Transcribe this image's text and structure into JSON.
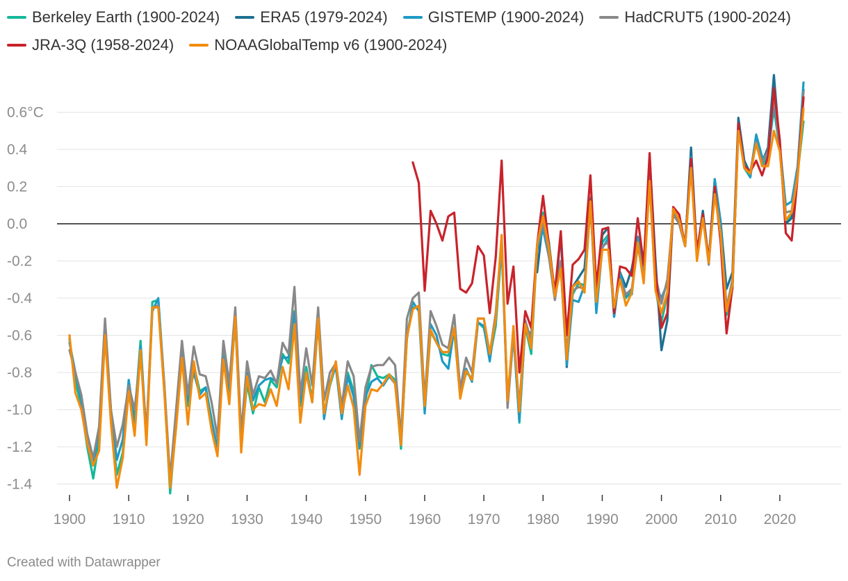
{
  "chart_data": {
    "type": "line",
    "title": "",
    "xlabel": "",
    "ylabel": "",
    "xlim": [
      1900,
      2024
    ],
    "ylim": [
      -1.5,
      0.8
    ],
    "y_ticks": [
      {
        "value": 0.6,
        "label": "0.6°C"
      },
      {
        "value": 0.4,
        "label": "0.4"
      },
      {
        "value": 0.2,
        "label": "0.2"
      },
      {
        "value": 0.0,
        "label": "0.0"
      },
      {
        "value": -0.2,
        "label": "-0.2"
      },
      {
        "value": -0.4,
        "label": "-0.4"
      },
      {
        "value": -0.6,
        "label": "-0.6"
      },
      {
        "value": -0.8,
        "label": "-0.8"
      },
      {
        "value": -1.0,
        "label": "-1.0"
      },
      {
        "value": -1.2,
        "label": "-1.2"
      },
      {
        "value": -1.4,
        "label": "-1.4"
      }
    ],
    "x_ticks": [
      {
        "value": 1900,
        "label": "1900"
      },
      {
        "value": 1910,
        "label": "1910"
      },
      {
        "value": 1920,
        "label": "1920"
      },
      {
        "value": 1930,
        "label": "1930"
      },
      {
        "value": 1940,
        "label": "1940"
      },
      {
        "value": 1950,
        "label": "1950"
      },
      {
        "value": 1960,
        "label": "1960"
      },
      {
        "value": 1970,
        "label": "1970"
      },
      {
        "value": 1980,
        "label": "1980"
      },
      {
        "value": 1990,
        "label": "1990"
      },
      {
        "value": 2000,
        "label": "2000"
      },
      {
        "value": 2010,
        "label": "2010"
      },
      {
        "value": 2020,
        "label": "2020"
      }
    ],
    "grid": true,
    "legend_position": "top",
    "baseline": 0,
    "series": [
      {
        "name": "Berkeley Earth (1900-2024)",
        "color": "#14b89a",
        "start_year": 1900,
        "values": [
          -0.62,
          -0.85,
          -0.98,
          -1.2,
          -1.37,
          -1.17,
          -0.58,
          -1.05,
          -1.35,
          -1.23,
          -0.86,
          -1.04,
          -0.63,
          -1.15,
          -0.42,
          -0.41,
          -0.88,
          -1.45,
          -1.08,
          -0.67,
          -0.98,
          -0.76,
          -0.9,
          -0.88,
          -1.05,
          -1.22,
          -0.67,
          -0.94,
          -0.51,
          -1.18,
          -0.86,
          -1.02,
          -0.88,
          -0.96,
          -0.84,
          -0.88,
          -0.7,
          -0.75,
          -0.47,
          -0.98,
          -0.77,
          -0.95,
          -0.5,
          -1.03,
          -0.87,
          -0.76,
          -1.04,
          -0.8,
          -0.9,
          -1.21,
          -0.95,
          -0.76,
          -0.82,
          -0.83,
          -0.81,
          -0.84,
          -1.21,
          -0.6,
          -0.45,
          -0.45,
          -1.0,
          -0.58,
          -0.64,
          -0.7,
          -0.71,
          -0.58,
          -0.93,
          -0.8,
          -0.83,
          -0.53,
          -0.56,
          -0.72,
          -0.55,
          -0.12,
          -0.97,
          -0.58,
          -1.07,
          -0.55,
          -0.7,
          -0.12,
          0.06,
          -0.1,
          -0.38,
          -0.22,
          -0.73,
          -0.38,
          -0.32,
          -0.33,
          0.14,
          -0.4,
          -0.1,
          -0.06,
          -0.46,
          -0.29,
          -0.4,
          -0.36,
          -0.12,
          -0.26,
          0.22,
          -0.35,
          -0.53,
          -0.38,
          0.07,
          0.01,
          -0.1,
          0.33,
          -0.18,
          0.05,
          -0.19,
          0.18,
          -0.04,
          -0.49,
          -0.33,
          0.52,
          0.3,
          0.25,
          0.46,
          0.31,
          0.38,
          0.62,
          0.4,
          0.0,
          0.05,
          0.27,
          0.55
        ]
      },
      {
        "name": "ERA5 (1979-2024)",
        "color": "#1d6f91",
        "start_year": 1979,
        "values": [
          -0.26,
          0.02,
          -0.13,
          -0.4,
          -0.05,
          -0.77,
          -0.34,
          -0.29,
          -0.24,
          0.13,
          -0.45,
          -0.06,
          -0.02,
          -0.5,
          -0.26,
          -0.34,
          -0.24,
          -0.07,
          -0.24,
          0.36,
          -0.2,
          -0.68,
          -0.52,
          0.08,
          0.0,
          -0.12,
          0.41,
          -0.16,
          0.07,
          -0.2,
          0.24,
          0.01,
          -0.35,
          -0.26,
          0.57,
          0.34,
          0.27,
          0.47,
          0.33,
          0.41,
          0.8,
          0.41,
          0.0,
          0.03,
          0.3,
          0.72
        ]
      },
      {
        "name": "GISTEMP (1900-2024)",
        "color": "#1c9bc5",
        "start_year": 1900,
        "values": [
          -0.64,
          -0.8,
          -0.95,
          -1.16,
          -1.3,
          -1.1,
          -0.55,
          -1.0,
          -1.27,
          -1.16,
          -0.84,
          -1.07,
          -0.66,
          -1.14,
          -0.47,
          -0.4,
          -0.86,
          -1.4,
          -1.05,
          -0.7,
          -0.95,
          -0.8,
          -0.92,
          -0.88,
          -1.07,
          -1.2,
          -0.72,
          -0.9,
          -0.52,
          -1.2,
          -0.8,
          -0.95,
          -0.87,
          -0.84,
          -0.83,
          -0.85,
          -0.72,
          -0.72,
          -0.48,
          -0.96,
          -0.8,
          -0.96,
          -0.52,
          -1.05,
          -0.85,
          -0.77,
          -1.05,
          -0.82,
          -0.93,
          -1.2,
          -0.93,
          -0.85,
          -0.83,
          -0.87,
          -0.82,
          -0.86,
          -1.17,
          -0.62,
          -0.42,
          -0.47,
          -1.02,
          -0.54,
          -0.6,
          -0.74,
          -0.78,
          -0.56,
          -0.9,
          -0.78,
          -0.85,
          -0.53,
          -0.55,
          -0.74,
          -0.5,
          -0.1,
          -0.95,
          -0.6,
          -1.06,
          -0.55,
          -0.6,
          -0.14,
          -0.03,
          -0.18,
          -0.36,
          -0.24,
          -0.76,
          -0.41,
          -0.42,
          -0.33,
          0.12,
          -0.48,
          -0.13,
          -0.08,
          -0.5,
          -0.26,
          -0.39,
          -0.38,
          -0.07,
          -0.22,
          0.27,
          -0.33,
          -0.4,
          -0.32,
          0.07,
          0.01,
          -0.1,
          0.36,
          -0.17,
          0.05,
          -0.2,
          0.24,
          0.0,
          -0.45,
          -0.35,
          0.53,
          0.32,
          0.25,
          0.48,
          0.36,
          0.36,
          0.65,
          0.42,
          0.1,
          0.12,
          0.31,
          0.76
        ]
      },
      {
        "name": "HadCRUT5 (1900-2024)",
        "color": "#888888",
        "start_year": 1900,
        "values": [
          -0.68,
          -0.8,
          -0.92,
          -1.13,
          -1.26,
          -1.09,
          -0.51,
          -1.0,
          -1.2,
          -1.08,
          -0.87,
          -1.0,
          -0.7,
          -1.12,
          -0.45,
          -0.44,
          -0.86,
          -1.37,
          -1.0,
          -0.63,
          -0.92,
          -0.66,
          -0.81,
          -0.82,
          -0.96,
          -1.15,
          -0.63,
          -0.86,
          -0.45,
          -1.13,
          -0.74,
          -0.92,
          -0.82,
          -0.83,
          -0.79,
          -0.86,
          -0.64,
          -0.7,
          -0.34,
          -0.92,
          -0.67,
          -0.87,
          -0.45,
          -0.95,
          -0.8,
          -0.75,
          -0.98,
          -0.74,
          -0.82,
          -1.17,
          -0.88,
          -0.77,
          -0.76,
          -0.76,
          -0.72,
          -0.76,
          -1.15,
          -0.51,
          -0.4,
          -0.37,
          -0.95,
          -0.47,
          -0.55,
          -0.65,
          -0.67,
          -0.49,
          -0.89,
          -0.72,
          -0.8,
          -0.51,
          -0.51,
          -0.7,
          -0.48,
          -0.08,
          -0.99,
          -0.6,
          -0.98,
          -0.52,
          -0.63,
          -0.12,
          0.01,
          -0.18,
          -0.41,
          -0.2,
          -0.7,
          -0.36,
          -0.34,
          -0.35,
          0.1,
          -0.42,
          -0.12,
          -0.1,
          -0.45,
          -0.3,
          -0.38,
          -0.35,
          -0.12,
          -0.28,
          0.25,
          -0.28,
          -0.43,
          -0.3,
          0.05,
          0.0,
          -0.12,
          0.32,
          -0.19,
          0.04,
          -0.22,
          0.2,
          -0.05,
          -0.45,
          -0.3,
          0.54,
          0.3,
          0.28,
          0.44,
          0.33,
          0.39,
          0.68,
          0.4,
          0.06,
          0.07,
          0.29,
          0.71
        ]
      },
      {
        "name": "JRA-3Q (1958-2024)",
        "color": "#c8232b",
        "start_year": 1958,
        "values": [
          0.33,
          0.22,
          -0.36,
          0.07,
          0.0,
          -0.09,
          0.04,
          0.06,
          -0.35,
          -0.37,
          -0.32,
          -0.12,
          -0.17,
          -0.48,
          -0.18,
          0.34,
          -0.43,
          -0.23,
          -0.8,
          -0.47,
          -0.56,
          -0.11,
          0.15,
          -0.12,
          -0.37,
          -0.04,
          -0.6,
          -0.22,
          -0.19,
          -0.14,
          0.26,
          -0.34,
          -0.03,
          -0.02,
          -0.48,
          -0.23,
          -0.24,
          -0.28,
          0.03,
          -0.22,
          0.38,
          -0.26,
          -0.56,
          -0.48,
          0.09,
          0.05,
          -0.12,
          0.35,
          -0.15,
          0.05,
          -0.2,
          0.2,
          -0.1,
          -0.59,
          -0.34,
          0.54,
          0.31,
          0.28,
          0.34,
          0.26,
          0.36,
          0.73,
          0.45,
          -0.05,
          -0.09,
          0.25,
          0.68
        ]
      },
      {
        "name": "NOAAGlobalTemp v6 (1900-2024)",
        "color": "#f28c0f",
        "start_year": 1900,
        "values": [
          -0.6,
          -0.91,
          -1.0,
          -1.18,
          -1.3,
          -1.22,
          -0.6,
          -1.07,
          -1.42,
          -1.26,
          -0.9,
          -1.14,
          -0.68,
          -1.19,
          -0.45,
          -0.45,
          -0.9,
          -1.42,
          -1.1,
          -0.72,
          -1.08,
          -0.74,
          -0.94,
          -0.91,
          -1.11,
          -1.25,
          -0.73,
          -0.97,
          -0.5,
          -1.23,
          -0.82,
          -1.0,
          -0.97,
          -0.98,
          -0.89,
          -0.98,
          -0.77,
          -0.89,
          -0.54,
          -1.07,
          -0.8,
          -0.96,
          -0.51,
          -1.02,
          -0.86,
          -0.74,
          -1.02,
          -0.87,
          -0.99,
          -1.35,
          -0.98,
          -0.89,
          -0.9,
          -0.86,
          -0.81,
          -0.86,
          -1.19,
          -0.61,
          -0.46,
          -0.44,
          -0.98,
          -0.57,
          -0.64,
          -0.69,
          -0.69,
          -0.56,
          -0.94,
          -0.79,
          -0.84,
          -0.51,
          -0.51,
          -0.7,
          -0.51,
          -0.06,
          -0.95,
          -0.55,
          -1.01,
          -0.54,
          -0.67,
          -0.11,
          0.04,
          -0.13,
          -0.39,
          -0.24,
          -0.73,
          -0.34,
          -0.31,
          -0.37,
          0.12,
          -0.42,
          -0.14,
          -0.14,
          -0.45,
          -0.3,
          -0.44,
          -0.37,
          -0.1,
          -0.32,
          0.23,
          -0.36,
          -0.48,
          -0.37,
          0.08,
          0.02,
          -0.12,
          0.3,
          -0.2,
          0.03,
          -0.21,
          0.16,
          -0.06,
          -0.47,
          -0.33,
          0.5,
          0.3,
          0.27,
          0.43,
          0.31,
          0.31,
          0.5,
          0.39,
          0.02,
          0.06,
          0.25,
          0.62
        ]
      }
    ]
  },
  "credit": "Created with Datawrapper"
}
